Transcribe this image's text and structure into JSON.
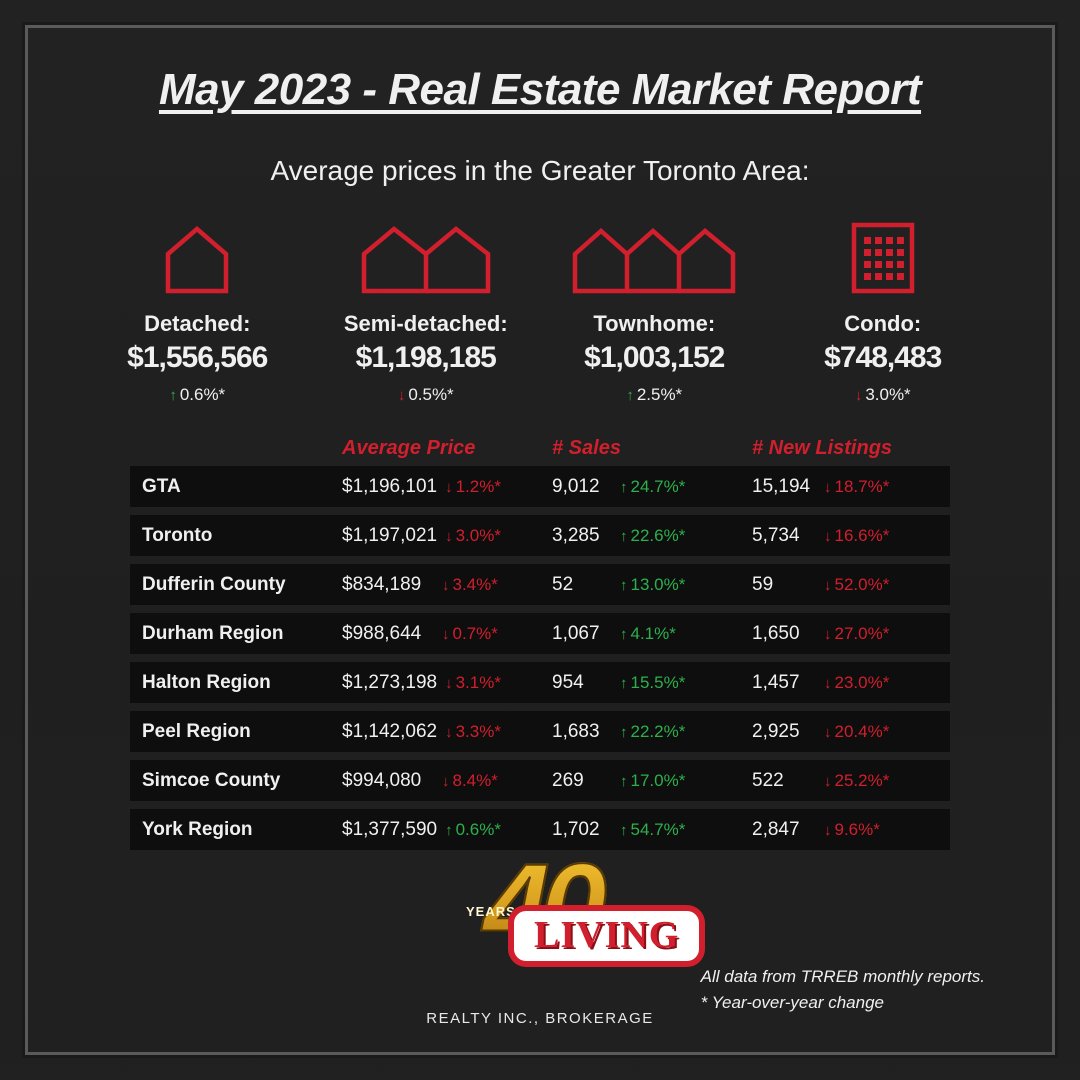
{
  "title": "May 2023 - Real Estate Market Report",
  "subtitle": "Average prices in the Greater Toronto Area:",
  "colors": {
    "accent_red": "#d11f2d",
    "up_green": "#2db04c",
    "down_red": "#d11f2d",
    "text": "#f0f0f0",
    "row_bg": "rgba(0,0,0,0.55)"
  },
  "types": [
    {
      "icon": "detached",
      "label": "Detached:",
      "price": "$1,556,566",
      "change": "0.6%*",
      "dir": "up"
    },
    {
      "icon": "semi",
      "label": "Semi-detached:",
      "price": "$1,198,185",
      "change": "0.5%*",
      "dir": "down"
    },
    {
      "icon": "town",
      "label": "Townhome:",
      "price": "$1,003,152",
      "change": "2.5%*",
      "dir": "up"
    },
    {
      "icon": "condo",
      "label": "Condo:",
      "price": "$748,483",
      "change": "3.0%*",
      "dir": "down"
    }
  ],
  "table": {
    "headers": [
      "",
      "Average Price",
      "# Sales",
      "# New Listings"
    ],
    "rows": [
      {
        "region": "GTA",
        "price": "$1,196,101",
        "price_chg": "1.2%*",
        "price_dir": "down",
        "sales": "9,012",
        "sales_chg": "24.7%*",
        "sales_dir": "up",
        "listings": "15,194",
        "list_chg": "18.7%*",
        "list_dir": "down"
      },
      {
        "region": "Toronto",
        "price": "$1,197,021",
        "price_chg": "3.0%*",
        "price_dir": "down",
        "sales": "3,285",
        "sales_chg": "22.6%*",
        "sales_dir": "up",
        "listings": "5,734",
        "list_chg": "16.6%*",
        "list_dir": "down"
      },
      {
        "region": "Dufferin County",
        "price": "$834,189",
        "price_chg": "3.4%*",
        "price_dir": "down",
        "sales": "52",
        "sales_chg": "13.0%*",
        "sales_dir": "up",
        "listings": "59",
        "list_chg": "52.0%*",
        "list_dir": "down"
      },
      {
        "region": "Durham Region",
        "price": "$988,644",
        "price_chg": "0.7%*",
        "price_dir": "down",
        "sales": "1,067",
        "sales_chg": "4.1%*",
        "sales_dir": "up",
        "listings": "1,650",
        "list_chg": "27.0%*",
        "list_dir": "down"
      },
      {
        "region": "Halton Region",
        "price": "$1,273,198",
        "price_chg": "3.1%*",
        "price_dir": "down",
        "sales": "954",
        "sales_chg": "15.5%*",
        "sales_dir": "up",
        "listings": "1,457",
        "list_chg": "23.0%*",
        "list_dir": "down"
      },
      {
        "region": "Peel Region",
        "price": "$1,142,062",
        "price_chg": "3.3%*",
        "price_dir": "down",
        "sales": "1,683",
        "sales_chg": "22.2%*",
        "sales_dir": "up",
        "listings": "2,925",
        "list_chg": "20.4%*",
        "list_dir": "down"
      },
      {
        "region": "Simcoe County",
        "price": "$994,080",
        "price_chg": "8.4%*",
        "price_dir": "down",
        "sales": "269",
        "sales_chg": "17.0%*",
        "sales_dir": "up",
        "listings": "522",
        "list_chg": "25.2%*",
        "list_dir": "down"
      },
      {
        "region": "York Region",
        "price": "$1,377,590",
        "price_chg": "0.6%*",
        "price_dir": "up",
        "sales": "1,702",
        "sales_chg": "54.7%*",
        "sales_dir": "up",
        "listings": "2,847",
        "list_chg": "9.6%*",
        "list_dir": "down"
      }
    ]
  },
  "logo": {
    "forty": "40",
    "years": "YEARS",
    "brand": "LIVING",
    "sub": "REALTY INC., BROKERAGE"
  },
  "footnote": {
    "line1": "All data from TRREB monthly reports.",
    "line2": "* Year-over-year change"
  }
}
